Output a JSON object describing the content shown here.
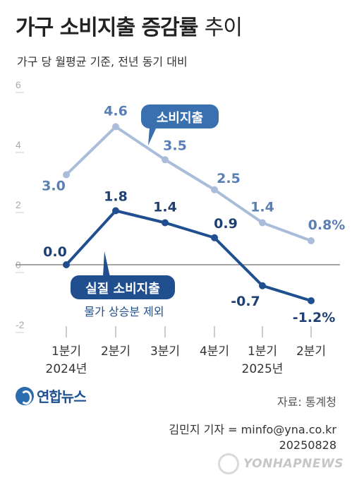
{
  "header": {
    "title_main": "가구 소비지출 증감률",
    "title_suffix": "추이",
    "subtitle": "가구 당 월평균 기준, 전년 동기 대비"
  },
  "chart_data": {
    "type": "line",
    "categories": [
      "1분기",
      "2분기",
      "3분기",
      "4분기",
      "1분기",
      "2분기"
    ],
    "year_labels": [
      "2024년",
      "2025년"
    ],
    "ylim": [
      -2,
      6
    ],
    "yticks": [
      6,
      4,
      2,
      0,
      -2
    ],
    "grid": false,
    "series": [
      {
        "name": "소비지출",
        "values": [
          3.0,
          4.6,
          3.5,
          2.5,
          1.4,
          0.8
        ],
        "labels": [
          "3.0",
          "4.6",
          "3.5",
          "2.5",
          "1.4",
          "0.8%"
        ],
        "color": "#a9bdda",
        "label_color": "#5a7fb5"
      },
      {
        "name": "실질 소비지출",
        "values": [
          0.0,
          1.8,
          1.4,
          0.9,
          -0.7,
          -1.2
        ],
        "labels": [
          "0.0",
          "1.8",
          "1.4",
          "0.9",
          "-0.7",
          "-1.2%"
        ],
        "color": "#1f4f8f",
        "label_color": "#1f3f73"
      }
    ],
    "annotations": {
      "real_note": "물가 상승분 제외"
    }
  },
  "footer": {
    "source": "자료: 통계청",
    "agency": "연합뉴스",
    "credit_line1": "김민지 기자 = minfo@yna.co.kr",
    "credit_line2": "20250828",
    "watermark": "YONHAPNEWS"
  },
  "colors": {
    "axis": "#888888",
    "tick": "#aaaaaa",
    "nominal_callout": "#3a6fb0",
    "real_callout": "#1f4f8f"
  }
}
